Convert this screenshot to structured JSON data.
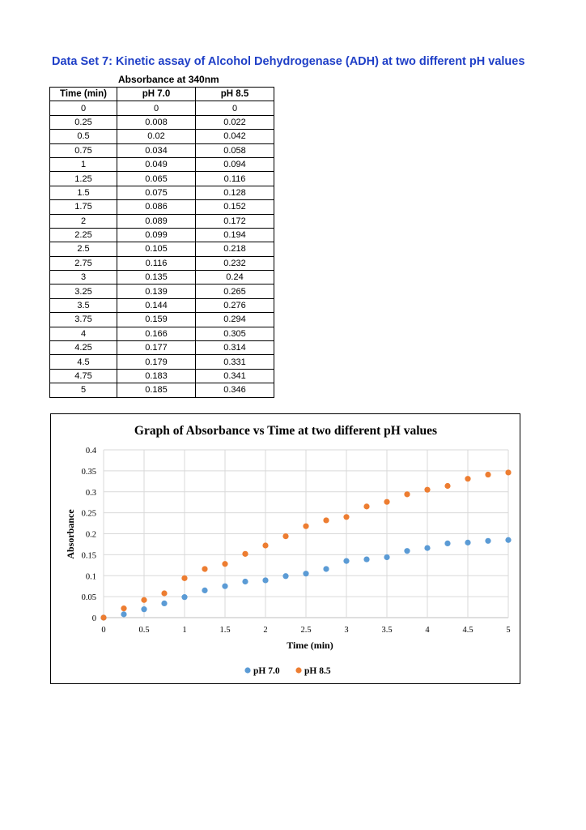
{
  "page": {
    "title": "Data Set 7: Kinetic assay of Alcohol Dehydrogenase (ADH) at two different pH values",
    "absorbance_header": "Absorbance at 340nm"
  },
  "table": {
    "headers": [
      "Time (min)",
      "pH 7.0",
      "pH 8.5"
    ],
    "rows": [
      [
        "0",
        "0",
        "0"
      ],
      [
        "0.25",
        "0.008",
        "0.022"
      ],
      [
        "0.5",
        "0.02",
        "0.042"
      ],
      [
        "0.75",
        "0.034",
        "0.058"
      ],
      [
        "1",
        "0.049",
        "0.094"
      ],
      [
        "1.25",
        "0.065",
        "0.116"
      ],
      [
        "1.5",
        "0.075",
        "0.128"
      ],
      [
        "1.75",
        "0.086",
        "0.152"
      ],
      [
        "2",
        "0.089",
        "0.172"
      ],
      [
        "2.25",
        "0.099",
        "0.194"
      ],
      [
        "2.5",
        "0.105",
        "0.218"
      ],
      [
        "2.75",
        "0.116",
        "0.232"
      ],
      [
        "3",
        "0.135",
        "0.24"
      ],
      [
        "3.25",
        "0.139",
        "0.265"
      ],
      [
        "3.5",
        "0.144",
        "0.276"
      ],
      [
        "3.75",
        "0.159",
        "0.294"
      ],
      [
        "4",
        "0.166",
        "0.305"
      ],
      [
        "4.25",
        "0.177",
        "0.314"
      ],
      [
        "4.5",
        "0.179",
        "0.331"
      ],
      [
        "4.75",
        "0.183",
        "0.341"
      ],
      [
        "5",
        "0.185",
        "0.346"
      ]
    ]
  },
  "chart_data": {
    "type": "scatter",
    "title": "Graph of Absorbance vs Time at two different pH values",
    "xlabel": "Time (min)",
    "ylabel": "Absorbance",
    "xlim": [
      0,
      5
    ],
    "ylim": [
      0,
      0.4
    ],
    "xticks": [
      "0",
      "0.5",
      "1",
      "1.5",
      "2",
      "2.5",
      "3",
      "3.5",
      "4",
      "4.5",
      "5"
    ],
    "yticks": [
      "0",
      "0.05",
      "0.1",
      "0.15",
      "0.2",
      "0.25",
      "0.3",
      "0.35",
      "0.4"
    ],
    "grid": true,
    "legend_position": "bottom",
    "x": [
      0,
      0.25,
      0.5,
      0.75,
      1,
      1.25,
      1.5,
      1.75,
      2,
      2.25,
      2.5,
      2.75,
      3,
      3.25,
      3.5,
      3.75,
      4,
      4.25,
      4.5,
      4.75,
      5
    ],
    "series": [
      {
        "name": "pH 7.0",
        "color": "#5b9bd5",
        "values": [
          0,
          0.008,
          0.02,
          0.034,
          0.049,
          0.065,
          0.075,
          0.086,
          0.089,
          0.099,
          0.105,
          0.116,
          0.135,
          0.139,
          0.144,
          0.159,
          0.166,
          0.177,
          0.179,
          0.183,
          0.185
        ]
      },
      {
        "name": "pH 8.5",
        "color": "#ed7d31",
        "values": [
          0,
          0.022,
          0.042,
          0.058,
          0.094,
          0.116,
          0.128,
          0.152,
          0.172,
          0.194,
          0.218,
          0.232,
          0.24,
          0.265,
          0.276,
          0.294,
          0.305,
          0.314,
          0.331,
          0.341,
          0.346
        ]
      }
    ],
    "gridline_color": "#d9d9d9"
  }
}
